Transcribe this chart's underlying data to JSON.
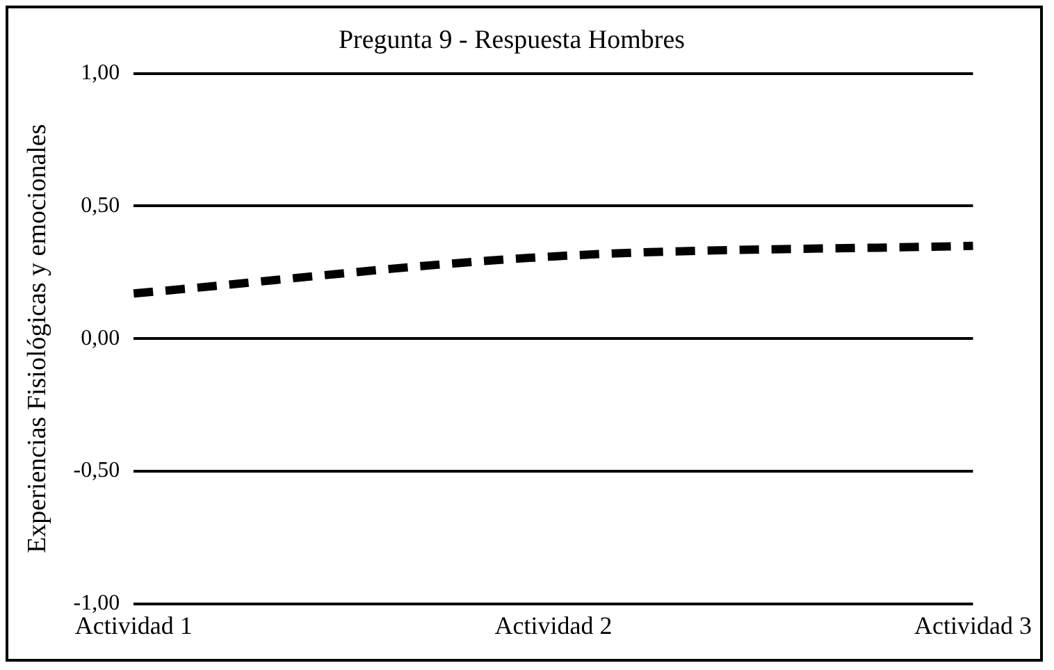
{
  "chart_data": {
    "type": "line",
    "title": "Pregunta 9 - Respuesta Hombres",
    "ylabel": "Experiencias Fisiológicas y emocionales",
    "categories": [
      "Actividad 1",
      "Actividad 2",
      "Actividad 3"
    ],
    "series": [
      {
        "color": "#000000",
        "values": [
          0.17,
          0.31,
          0.35
        ]
      }
    ],
    "ylim": [
      -1,
      1
    ],
    "yticks": [
      {
        "value": -1,
        "label": "-1,00"
      },
      {
        "value": -0.5,
        "label": "-0,50"
      },
      {
        "value": 0,
        "label": "0,00"
      },
      {
        "value": 0.5,
        "label": "0,50"
      },
      {
        "value": 1,
        "label": "1,00"
      }
    ],
    "grid": "y",
    "legend": false,
    "marker": "none",
    "line_style": "dashed"
  }
}
